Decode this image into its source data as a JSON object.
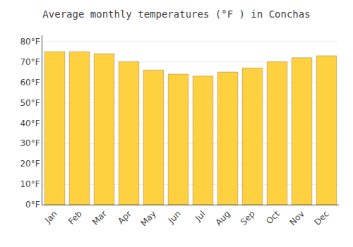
{
  "chart_data": {
    "type": "bar",
    "title": "Average monthly temperatures (°F ) in Conchas",
    "categories": [
      "Jan",
      "Feb",
      "Mar",
      "Apr",
      "May",
      "Jun",
      "Jul",
      "Aug",
      "Sep",
      "Oct",
      "Nov",
      "Dec"
    ],
    "values": [
      75,
      75,
      74,
      70,
      66,
      64,
      63,
      65,
      67,
      70,
      72,
      73
    ],
    "color": "#FFD040",
    "ylim": [
      0,
      83
    ],
    "yticks": [
      {
        "value": 0,
        "label": "0°F"
      },
      {
        "value": 10,
        "label": "10°F"
      },
      {
        "value": 20,
        "label": "20°F"
      },
      {
        "value": 30,
        "label": "30°F"
      },
      {
        "value": 40,
        "label": "40°F"
      },
      {
        "value": 50,
        "label": "50°F"
      },
      {
        "value": 60,
        "label": "60°F"
      },
      {
        "value": 70,
        "label": "70°F"
      },
      {
        "value": 80,
        "label": "80°F"
      }
    ],
    "grid": true
  }
}
